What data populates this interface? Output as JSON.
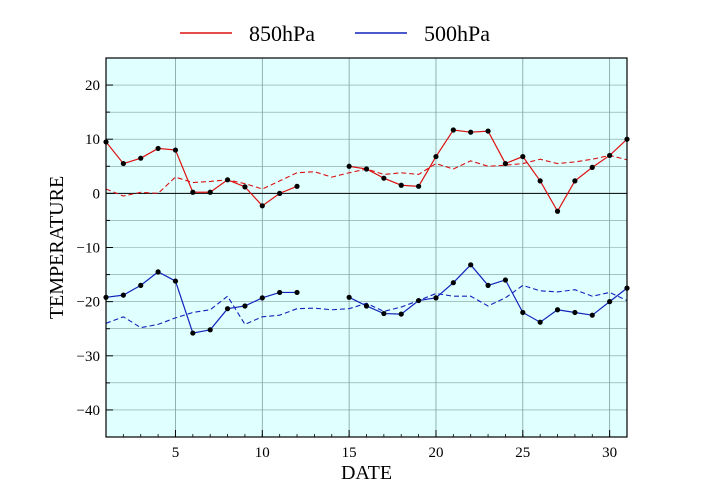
{
  "chart_data": {
    "type": "line",
    "title": "",
    "xlabel": "DATE",
    "ylabel": "TEMPERATURE",
    "xlim": [
      1,
      31
    ],
    "ylim": [
      -45,
      25
    ],
    "x_ticks": [
      5,
      10,
      15,
      20,
      25,
      30
    ],
    "y_ticks": [
      -40,
      -30,
      -20,
      -10,
      0,
      10,
      20
    ],
    "grid": true,
    "legend_position": "top-center",
    "background_color": "#e0ffff",
    "grid_color": "#7f9f9f",
    "x": [
      1,
      2,
      3,
      4,
      5,
      6,
      7,
      8,
      9,
      10,
      11,
      12,
      13,
      14,
      15,
      16,
      17,
      18,
      19,
      20,
      21,
      22,
      23,
      24,
      25,
      26,
      27,
      28,
      29,
      30,
      31
    ],
    "series": [
      {
        "name": "850hPa",
        "color": "#dd1111",
        "style": "solid-markers",
        "values": [
          9.5,
          5.5,
          6.5,
          8.3,
          8.0,
          0.2,
          0.2,
          2.5,
          1.2,
          -2.3,
          0.0,
          1.3,
          null,
          null,
          5.0,
          4.5,
          2.8,
          1.5,
          1.3,
          6.8,
          11.7,
          11.3,
          11.5,
          5.5,
          6.8,
          2.3,
          -3.3,
          2.3,
          4.8,
          7.0,
          10.0
        ],
        "climatology": [
          0.8,
          -0.5,
          0.2,
          0.0,
          3.0,
          2.0,
          2.2,
          2.5,
          1.8,
          0.8,
          2.3,
          3.8,
          4.0,
          3.0,
          3.8,
          4.5,
          3.5,
          3.8,
          3.5,
          5.5,
          4.5,
          6.0,
          5.0,
          5.2,
          5.5,
          6.3,
          5.5,
          5.8,
          6.3,
          7.0,
          6.2
        ]
      },
      {
        "name": "500hPa",
        "color": "#1122bb",
        "style": "solid-markers",
        "values": [
          -19.2,
          -18.8,
          -17.0,
          -14.5,
          -16.2,
          -25.8,
          -25.2,
          -21.3,
          -20.8,
          -19.3,
          -18.3,
          -18.3,
          null,
          null,
          -19.2,
          -20.8,
          -22.2,
          -22.3,
          -19.8,
          -19.3,
          -16.5,
          -13.2,
          -17.0,
          -16.0,
          -22.0,
          -23.8,
          -21.5,
          -22.0,
          -22.5,
          -20.0,
          -17.5
        ],
        "climatology": [
          -24.0,
          -22.8,
          -24.8,
          -24.2,
          -23.0,
          -22.0,
          -21.5,
          -19.0,
          -24.2,
          -22.8,
          -22.5,
          -21.3,
          -21.2,
          -21.5,
          -21.3,
          -20.3,
          -21.8,
          -21.0,
          -19.8,
          -18.5,
          -19.0,
          -19.0,
          -20.8,
          -19.3,
          -17.0,
          -18.0,
          -18.2,
          -17.8,
          -19.0,
          -18.3,
          -19.8
        ]
      }
    ]
  }
}
